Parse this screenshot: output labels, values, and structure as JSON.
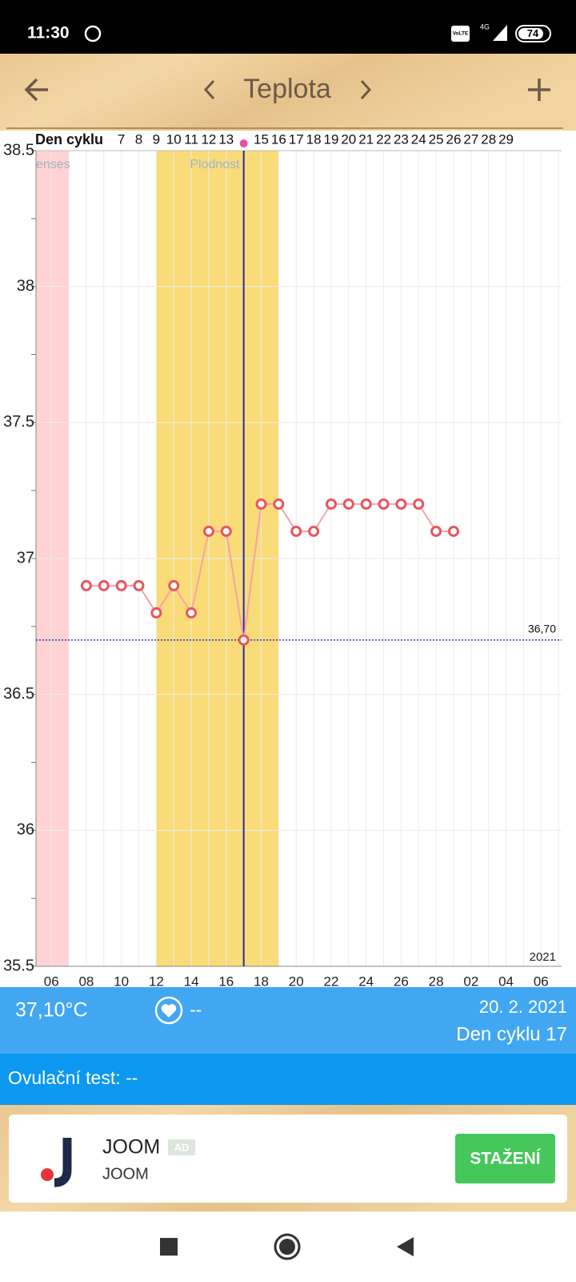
{
  "status_bar": {
    "time": "11:30",
    "volte": "VoLTE",
    "network": "4G",
    "battery": "74"
  },
  "header": {
    "title": "Teplota"
  },
  "chart_data": {
    "type": "line",
    "cycle_label": "Den cyklu",
    "cycle_days": [
      null,
      null,
      null,
      null,
      "7",
      "8",
      "9",
      "10",
      "11",
      "12",
      "13",
      null,
      "15",
      "16",
      "17",
      "18",
      "19",
      "20",
      "21",
      "22",
      "23",
      "24",
      "25",
      "26",
      "27",
      "28",
      "29",
      null,
      null,
      null
    ],
    "categories": [
      "06",
      null,
      "08",
      null,
      "10",
      null,
      "12",
      null,
      "14",
      null,
      "16",
      null,
      "18",
      null,
      "20",
      null,
      "22",
      null,
      "24",
      null,
      "26",
      null,
      "28",
      null,
      "02",
      null,
      "04",
      null,
      "06",
      null
    ],
    "values": [
      null,
      null,
      36.9,
      36.9,
      36.9,
      36.9,
      36.8,
      36.9,
      36.8,
      37.1,
      37.1,
      36.7,
      37.2,
      37.2,
      37.1,
      37.1,
      37.2,
      37.2,
      37.2,
      37.2,
      37.2,
      37.2,
      37.1,
      37.1,
      null,
      null,
      null,
      null,
      null,
      null
    ],
    "color": "#f5a3aa",
    "marker_color": "#e8555c",
    "ylim": [
      35.5,
      38.5
    ],
    "yticks": [
      35.5,
      36,
      36.5,
      37,
      37.5,
      38,
      38.5
    ],
    "yminorticks": [
      35.75,
      36.25,
      36.75,
      37.25,
      37.75,
      38.25
    ],
    "grid": true,
    "reference_line": {
      "value": 36.7,
      "label": "36,70"
    },
    "bands": [
      {
        "label": "enses",
        "color": "#ffd3d3"
      },
      {
        "label": "Plodnost",
        "color": "#f9dc78"
      }
    ],
    "year": "2021"
  },
  "info": {
    "temperature": "37,10°C",
    "heart": "--",
    "date": "20. 2. 2021",
    "cycle_day": "Den cyklu 17"
  },
  "ovulation_test": "Ovulační test: --",
  "ad": {
    "name": "JOOM",
    "badge": "AD",
    "subtitle": "JOOM",
    "button": "STAŽENÍ"
  }
}
